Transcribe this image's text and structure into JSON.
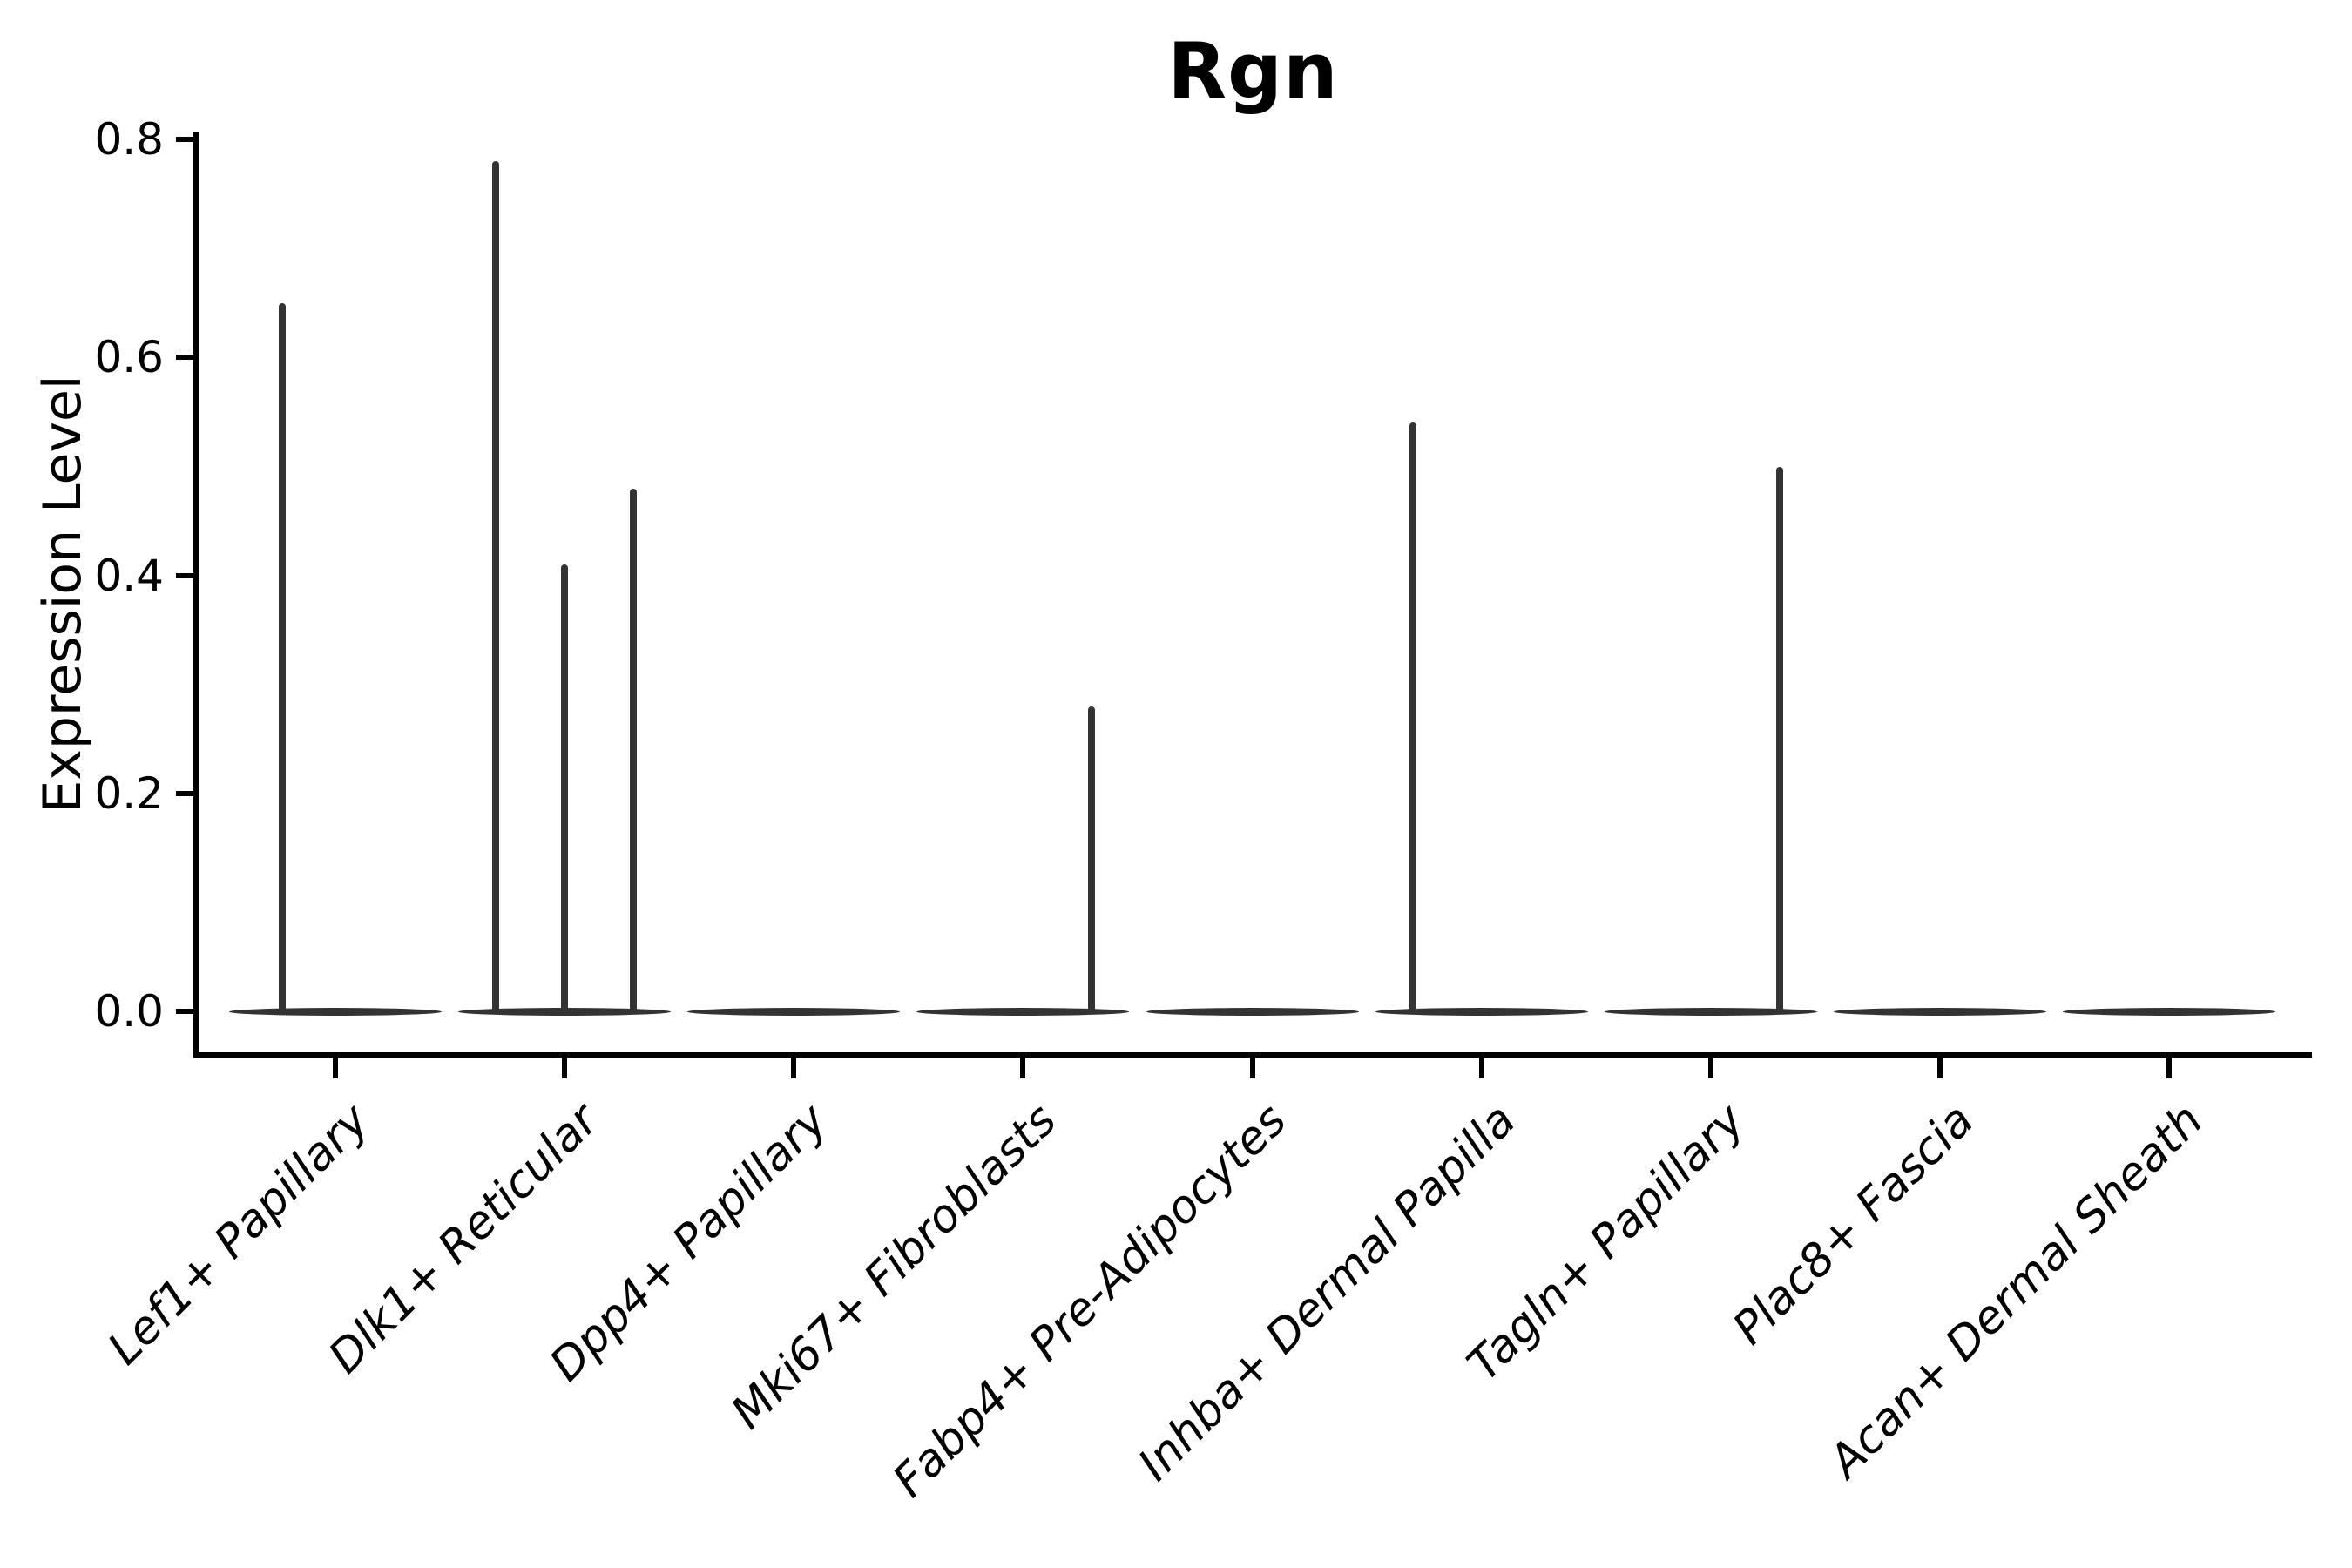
{
  "title": "Rgn",
  "chart_data": {
    "type": "violin",
    "title": "Rgn",
    "xlabel": "",
    "ylabel": "Expression Level",
    "ylim": [
      0,
      0.8
    ],
    "yticks": [
      "0.0",
      "0.2",
      "0.4",
      "0.6",
      "0.8"
    ],
    "ytick_values": [
      0.0,
      0.2,
      0.4,
      0.6,
      0.8
    ],
    "grid": false,
    "legend_position": "none",
    "categories": [
      "Lef1+ Papillary",
      "Dlk1+ Reticular",
      "Dpp4+ Papillary",
      "Mki67+ Fibroblasts",
      "Fabp4+ Pre-Adipocytes",
      "Inhba+ Dermal Papilla",
      "Tagln+ Papillary",
      "Plac8+ Fascia",
      "Acan+ Dermal Sheath"
    ],
    "series": [
      {
        "name": "Lef1+ Papillary",
        "baseline_value": 0,
        "spikes": [
          {
            "value": 0.65,
            "offset": -0.23
          }
        ]
      },
      {
        "name": "Dlk1+ Reticular",
        "baseline_value": 0,
        "spikes": [
          {
            "value": 0.78,
            "offset": -0.3
          },
          {
            "value": 0.41,
            "offset": 0.0
          },
          {
            "value": 0.48,
            "offset": 0.3
          }
        ]
      },
      {
        "name": "Dpp4+ Papillary",
        "baseline_value": 0,
        "spikes": []
      },
      {
        "name": "Mki67+ Fibroblasts",
        "baseline_value": 0,
        "spikes": [
          {
            "value": 0.28,
            "offset": 0.3
          }
        ]
      },
      {
        "name": "Fabp4+ Pre-Adipocytes",
        "baseline_value": 0,
        "spikes": []
      },
      {
        "name": "Inhba+ Dermal Papilla",
        "baseline_value": 0,
        "spikes": [
          {
            "value": 0.54,
            "offset": -0.3
          }
        ]
      },
      {
        "name": "Tagln+ Papillary",
        "baseline_value": 0,
        "spikes": [
          {
            "value": 0.5,
            "offset": 0.3
          }
        ]
      },
      {
        "name": "Plac8+ Fascia",
        "baseline_value": 0,
        "spikes": []
      },
      {
        "name": "Acan+ Dermal Sheath",
        "baseline_value": 0,
        "spikes": []
      }
    ],
    "colors": {
      "violin": "#333333",
      "axis": "#000000",
      "text": "#000000",
      "background": "#ffffff"
    }
  }
}
